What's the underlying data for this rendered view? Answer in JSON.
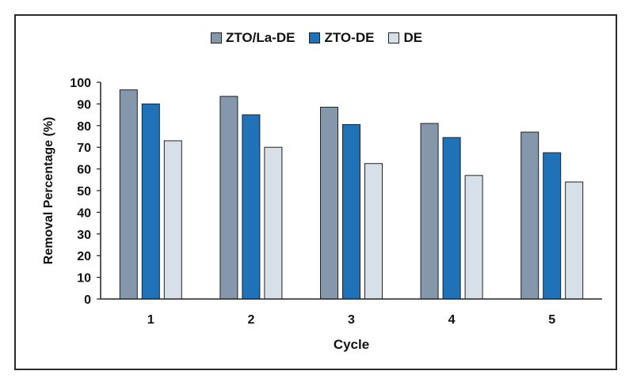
{
  "chart_data": {
    "type": "bar",
    "title": "",
    "xlabel": "Cycle",
    "ylabel": "Removal Percentage (%)",
    "ylim": [
      0,
      100
    ],
    "yticks": [
      "0",
      "10",
      "20",
      "30",
      "40",
      "50",
      "60",
      "70",
      "80",
      "90",
      "100"
    ],
    "categories": [
      "1",
      "2",
      "3",
      "4",
      "5"
    ],
    "series": [
      {
        "name": "ZTO/La-DE",
        "color": "#8497ab",
        "values": [
          96.5,
          93.5,
          88.5,
          81,
          77
        ]
      },
      {
        "name": "ZTO-DE",
        "color": "#1f72b8",
        "values": [
          90,
          85,
          80.5,
          74.5,
          67.5
        ]
      },
      {
        "name": "DE",
        "color": "#d7dfe8",
        "values": [
          73,
          70,
          62.5,
          57,
          54
        ]
      }
    ],
    "grid": false,
    "legend_position": "top"
  }
}
